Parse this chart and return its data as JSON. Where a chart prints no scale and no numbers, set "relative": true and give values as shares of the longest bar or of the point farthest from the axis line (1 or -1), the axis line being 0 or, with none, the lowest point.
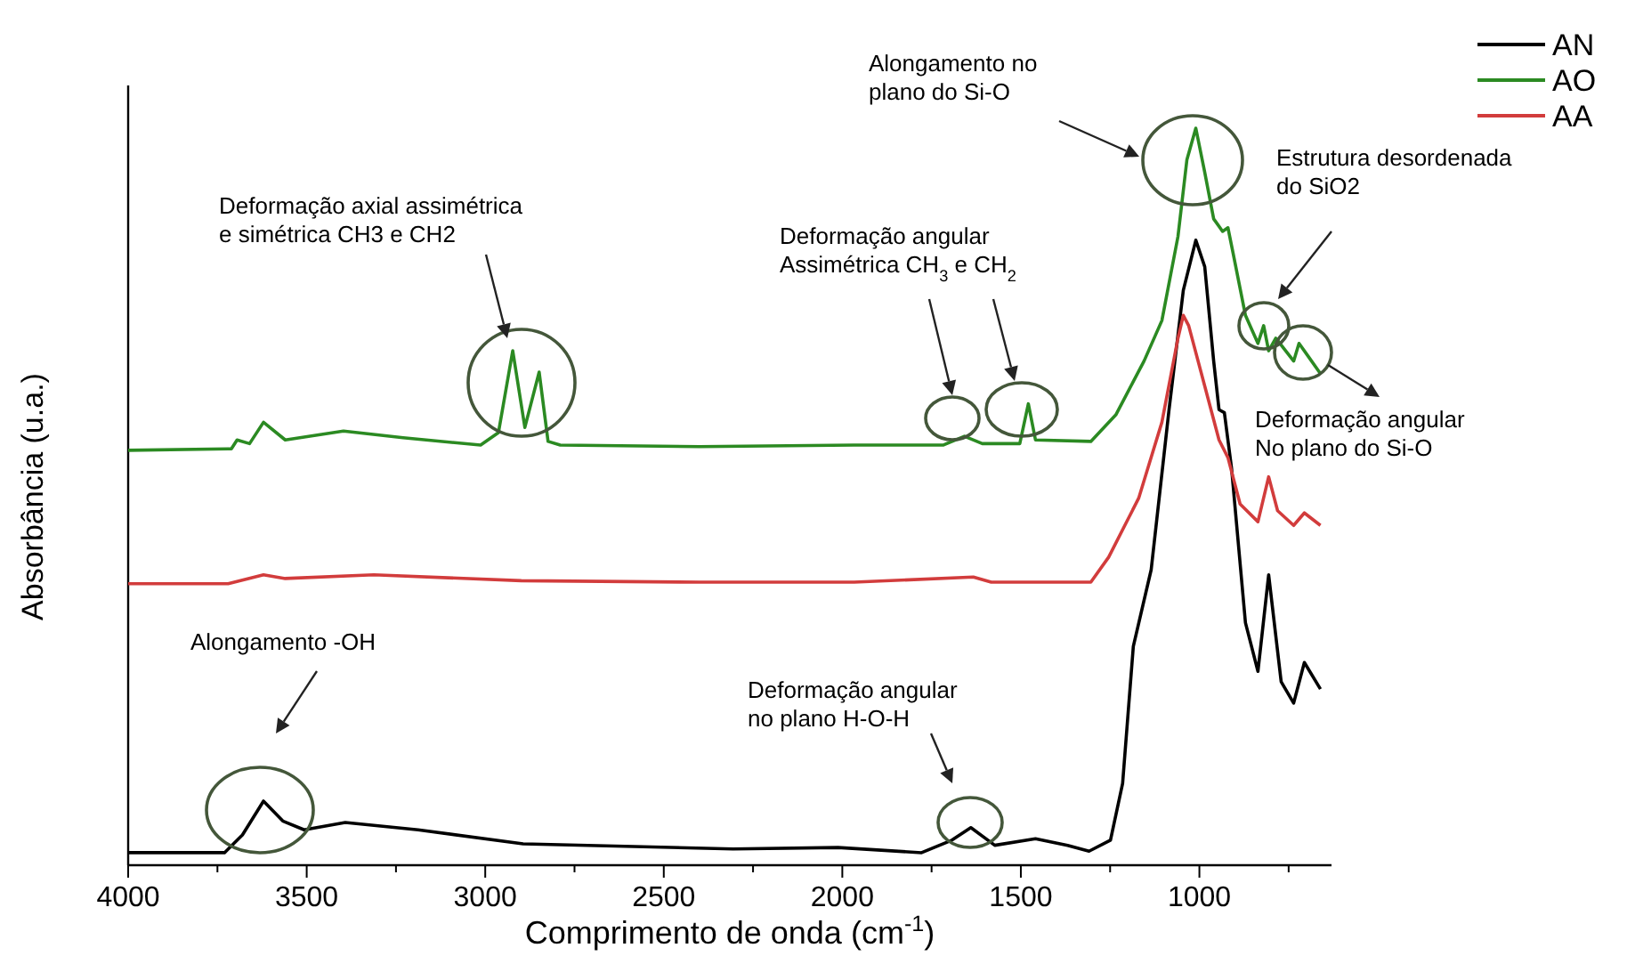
{
  "chart_data": {
    "type": "line",
    "relative": true,
    "xlabel": "Comprimento de onda (cm$^{-1}$)",
    "ylabel": "Absorbância (u.a.)",
    "legend": "top right",
    "xlim": [
      4000,
      630
    ],
    "xticks": [
      4000,
      {
        "value": 3750,
        "label": null
      },
      3500,
      {
        "value": 3250,
        "label": null
      },
      3000,
      {
        "value": 2750,
        "label": null
      },
      2500,
      {
        "value": 2250,
        "label": null
      },
      2000,
      {
        "value": 1750,
        "label": null
      },
      1500,
      {
        "value": 1250,
        "label": null
      },
      1000,
      {
        "value": 750,
        "label": null
      }
    ],
    "series": [
      {
        "name": "AN",
        "color": "#000000",
        "x": [
          4000,
          3730,
          3680,
          3621,
          3567,
          3507,
          3392,
          3188,
          2894,
          2306,
          2012,
          1778,
          1693,
          1640,
          1573,
          1459,
          1369,
          1309,
          1249,
          1215,
          1185,
          1135,
          1085,
          1045,
          1010,
          985,
          960,
          945,
          930,
          910,
          871,
          836,
          806,
          771,
          736,
          706,
          661
        ],
        "values": [
          0.017,
          0.017,
          0.041,
          0.087,
          0.06,
          0.048,
          0.058,
          0.048,
          0.029,
          0.022,
          0.024,
          0.017,
          0.034,
          0.051,
          0.027,
          0.036,
          0.027,
          0.019,
          0.034,
          0.111,
          0.297,
          0.401,
          0.618,
          0.78,
          0.848,
          0.812,
          0.684,
          0.618,
          0.614,
          0.539,
          0.329,
          0.263,
          0.394,
          0.249,
          0.22,
          0.275,
          0.239
        ]
      },
      {
        "name": "AO",
        "color": "#2b8a22",
        "x": [
          4000,
          3711,
          3695,
          3660,
          3621,
          3560,
          3397,
          3230,
          3013,
          2963,
          2923,
          2889,
          2849,
          2824,
          2790,
          2400,
          1967,
          1718,
          1658,
          1608,
          1503,
          1479,
          1459,
          1304,
          1234,
          1155,
          1105,
          1060,
          1035,
          1010,
          985,
          960,
          935,
          920,
          905,
          871,
          836,
          820,
          806,
          786,
          736,
          721,
          696,
          661
        ],
        "values": [
          0.563,
          0.565,
          0.577,
          0.572,
          0.601,
          0.577,
          0.589,
          0.58,
          0.57,
          0.587,
          0.698,
          0.594,
          0.669,
          0.575,
          0.57,
          0.568,
          0.57,
          0.57,
          0.582,
          0.572,
          0.572,
          0.626,
          0.577,
          0.575,
          0.611,
          0.684,
          0.739,
          0.853,
          0.957,
          1.0,
          0.94,
          0.877,
          0.86,
          0.865,
          0.829,
          0.746,
          0.708,
          0.732,
          0.698,
          0.715,
          0.684,
          0.708,
          0.691,
          0.667
        ]
      },
      {
        "name": "AA",
        "color": "#d23c3c",
        "x": [
          4000,
          3720,
          3621,
          3560,
          3312,
          2899,
          2400,
          1967,
          1633,
          1583,
          1304,
          1254,
          1170,
          1105,
          1060,
          1045,
          1030,
          985,
          945,
          920,
          886,
          836,
          806,
          781,
          736,
          706,
          661
        ],
        "values": [
          0.382,
          0.382,
          0.394,
          0.389,
          0.394,
          0.386,
          0.384,
          0.384,
          0.391,
          0.384,
          0.384,
          0.418,
          0.498,
          0.601,
          0.715,
          0.746,
          0.732,
          0.65,
          0.577,
          0.553,
          0.49,
          0.466,
          0.527,
          0.481,
          0.461,
          0.478,
          0.461
        ]
      }
    ],
    "annotations": [
      "Deformação axial assimétrica\ne simétrica CH3 e CH2",
      "Deformação angular\nAssimétrica  CH$_{3}$ e CH$_{2}$",
      "Alongamento no\nplano do Si-O",
      "Estrutura desordenada\ndo SiO2",
      "Deformação angular\nNo plano do Si-O",
      "Alongamento -OH",
      "Deformação angular\nno plano H-O-H"
    ]
  }
}
